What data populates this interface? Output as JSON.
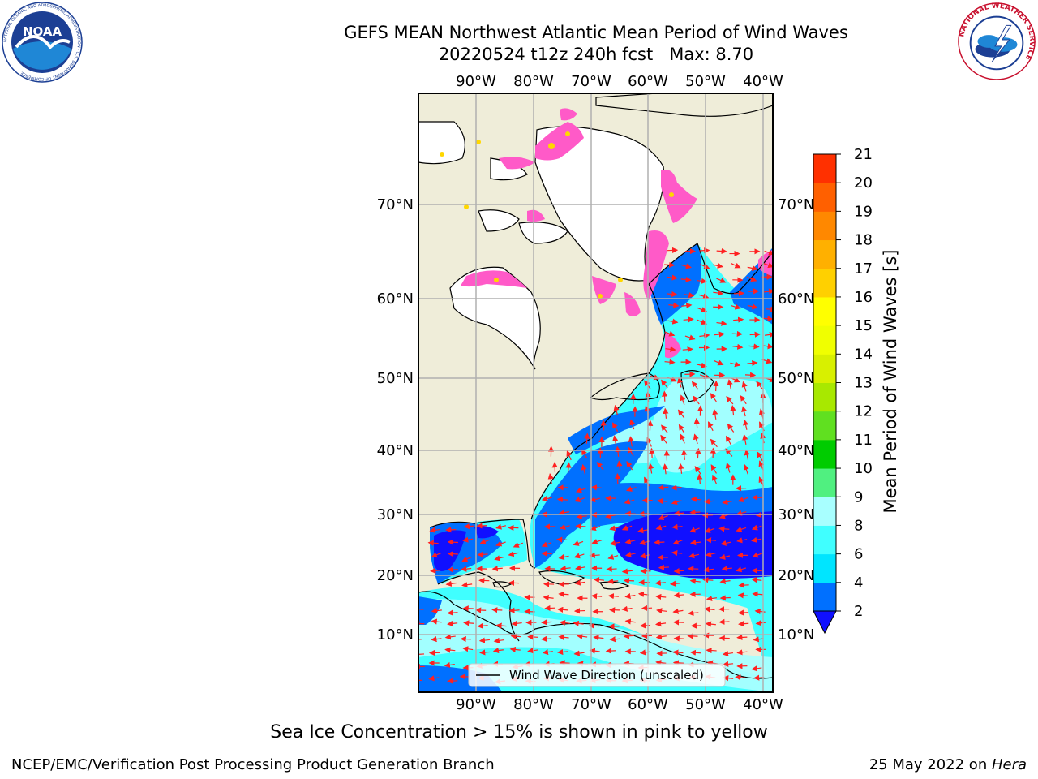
{
  "header": {
    "title_line1": "GEFS MEAN Northwest Atlantic Mean Period of Wind Waves",
    "title_line2": "20220524 t12z 240h fcst   Max: 8.70"
  },
  "logos": {
    "left": {
      "icon": "noaa-logo-icon",
      "text": "NOAA",
      "ring_text": "NATIONAL OCEANIC AND ATMOSPHERIC ADMINISTRATION · U.S. DEPARTMENT OF COMMERCE"
    },
    "right": {
      "icon": "nws-logo-icon",
      "ring_text": "NATIONAL WEATHER SERVICE"
    }
  },
  "map": {
    "lon_ticks": [
      "90°W",
      "80°W",
      "70°W",
      "60°W",
      "50°W",
      "40°W"
    ],
    "lat_ticks": [
      "70°N",
      "60°N",
      "50°N",
      "40°N",
      "30°N",
      "20°N",
      "10°N"
    ],
    "legend_label": "Wind Wave Direction (unscaled)",
    "colors": {
      "land": "#efedd9",
      "ice_free_land": "#ffffff",
      "grid": "#b0b0b0",
      "arrow": "#ff2020",
      "ice_pink": "#ff5ac8",
      "ice_yellow": "#ffd700"
    }
  },
  "colorbar": {
    "label": "Mean Period of Wind Waves [s]",
    "ticks": [
      "2",
      "4",
      "6",
      "8",
      "9",
      "10",
      "11",
      "12",
      "13",
      "14",
      "15",
      "16",
      "17",
      "18",
      "19",
      "20",
      "21"
    ],
    "colors": [
      "#0070ff",
      "#00e5ff",
      "#40ffff",
      "#a8ffff",
      "#50f080",
      "#00cc00",
      "#60e020",
      "#a8e800",
      "#d8f000",
      "#f0ff00",
      "#ffff00",
      "#ffd000",
      "#ffb000",
      "#ff8800",
      "#ff6000",
      "#ff3000",
      "#ff0000"
    ],
    "extend_color": "#1010ff"
  },
  "note": "Sea Ice Concentration > 15% is shown in pink to yellow",
  "footer": {
    "left": "NCEP/EMC/Verification Post Processing Product Generation Branch",
    "right_prefix": "25 May 2022 on ",
    "right_system": "Hera"
  }
}
